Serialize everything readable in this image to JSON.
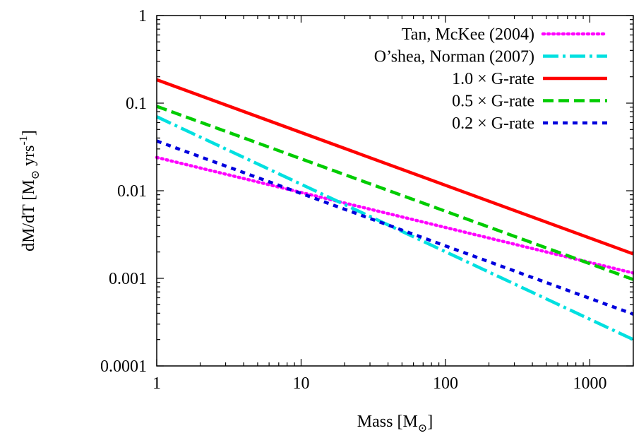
{
  "chart_data": {
    "type": "line",
    "title": "",
    "xlabel": "Mass [M",
    "xlabel_sub": "⊙",
    "xlabel_end": "]",
    "ylabel": "dM/dT [M",
    "ylabel_sub": "⊙",
    "ylabel_mid": " yrs",
    "ylabel_sup": "-1",
    "ylabel_end": "]",
    "xscale": "log",
    "yscale": "log",
    "xlim": [
      1,
      2000
    ],
    "ylim": [
      0.0001,
      1
    ],
    "xticks": [
      1,
      10,
      100,
      1000
    ],
    "xtick_labels": [
      "1",
      "10",
      "100",
      "1000"
    ],
    "yticks": [
      0.0001,
      0.001,
      0.01,
      0.1,
      1
    ],
    "ytick_labels": [
      "0.0001",
      "0.001",
      "0.01",
      "0.1",
      "1"
    ],
    "grid": false,
    "legend_position": "top-right",
    "series": [
      {
        "name": "Tan, McKee (2004)",
        "color": "#ff00ff",
        "style": "dotted",
        "x": [
          1,
          2000
        ],
        "y": [
          0.024,
          0.00115
        ]
      },
      {
        "name": "O’shea, Norman (2007)",
        "color": "#00e0e0",
        "style": "dash-dot",
        "x": [
          1,
          2000
        ],
        "y": [
          0.07,
          0.0002
        ]
      },
      {
        "name": "1.0 × G-rate",
        "color": "#ff0000",
        "style": "solid",
        "x": [
          1,
          2000
        ],
        "y": [
          0.185,
          0.0019
        ]
      },
      {
        "name": "0.5 × G-rate",
        "color": "#00cc00",
        "style": "dashed",
        "x": [
          1,
          2000
        ],
        "y": [
          0.092,
          0.00097
        ]
      },
      {
        "name": "0.2 × G-rate",
        "color": "#0000dd",
        "style": "short-dash",
        "x": [
          1,
          2000
        ],
        "y": [
          0.037,
          0.00039
        ]
      }
    ]
  }
}
